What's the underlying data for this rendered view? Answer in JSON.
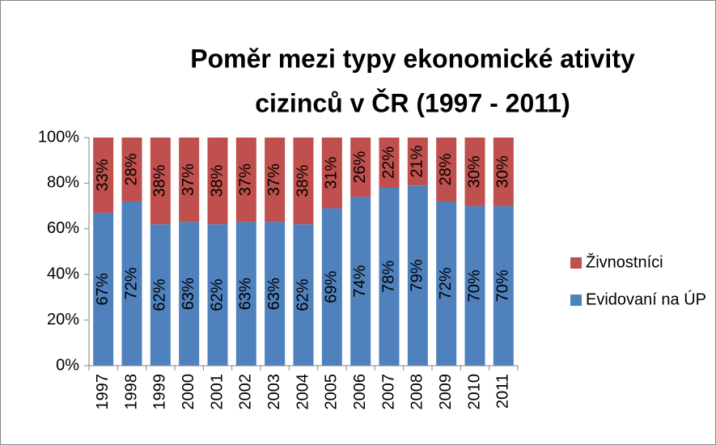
{
  "chart_data": {
    "type": "stacked_bar",
    "title": [
      "Poměr mezi typy ekonomické ativity",
      "cizinců v ČR (1997 - 2011)"
    ],
    "categories": [
      "1997",
      "1998",
      "1999",
      "2000",
      "2001",
      "2002",
      "2003",
      "2004",
      "2005",
      "2006",
      "2007",
      "2008",
      "2009",
      "2010",
      "2011"
    ],
    "series": [
      {
        "name": "Evidovaní na ÚP",
        "color": "#4f81bd",
        "values": [
          67,
          72,
          62,
          63,
          62,
          63,
          63,
          62,
          69,
          74,
          78,
          79,
          72,
          70,
          70
        ],
        "value_labels": [
          "67%",
          "72%",
          "62%",
          "63%",
          "62%",
          "63%",
          "63%",
          "62%",
          "69%",
          "74%",
          "78%",
          "79%",
          "72%",
          "70%",
          "70%"
        ]
      },
      {
        "name": "Živnostníci",
        "color": "#c0504d",
        "values": [
          33,
          28,
          38,
          37,
          38,
          37,
          37,
          38,
          31,
          26,
          22,
          21,
          28,
          30,
          30
        ],
        "value_labels": [
          "33%",
          "28%",
          "38%",
          "37%",
          "38%",
          "37%",
          "37%",
          "38%",
          "31%",
          "26%",
          "22%",
          "21%",
          "28%",
          "30%",
          "30%"
        ]
      }
    ],
    "ylim": [
      0,
      100
    ],
    "yticks": [
      {
        "value": 0,
        "label": "0%"
      },
      {
        "value": 20,
        "label": "20%"
      },
      {
        "value": 40,
        "label": "40%"
      },
      {
        "value": 60,
        "label": "60%"
      },
      {
        "value": 80,
        "label": "80%"
      },
      {
        "value": 100,
        "label": "100%"
      }
    ],
    "grid": false,
    "legend": "right"
  }
}
